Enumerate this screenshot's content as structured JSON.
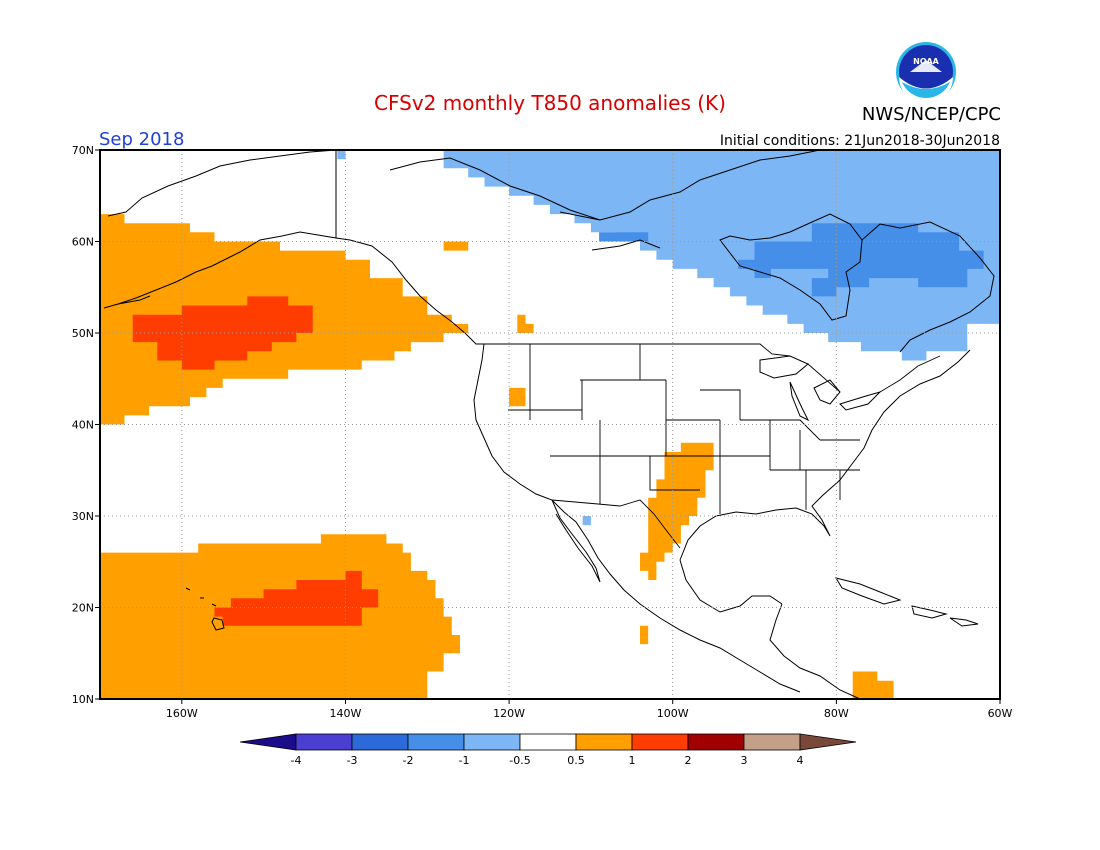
{
  "header": {
    "title": "CFSv2 monthly T850 anomalies (K)",
    "valid_month": "Sep 2018",
    "agency": "NWS/NCEP/CPC",
    "initial_conditions": "Initial conditions: 21Jun2018-30Jun2018",
    "logo_text": "NOAA"
  },
  "map": {
    "projection": "cylindrical equidistant",
    "lon_range": [
      -170,
      -60
    ],
    "lat_range": [
      10,
      70
    ],
    "grid_lines": "dotted",
    "lat_ticks": [
      "10N",
      "20N",
      "30N",
      "40N",
      "50N",
      "60N",
      "70N"
    ],
    "lon_ticks": [
      "160W",
      "140W",
      "120W",
      "100W",
      "80W",
      "60W"
    ],
    "anomaly_regions": [
      {
        "name": "north-pacific-warm",
        "category": "0.5 to 1",
        "polygon": [
          [
            -170,
            40
          ],
          [
            -167,
            40
          ],
          [
            -167,
            41
          ],
          [
            -164,
            41
          ],
          [
            -164,
            42
          ],
          [
            -159,
            42
          ],
          [
            -159,
            43
          ],
          [
            -157,
            43
          ],
          [
            -157,
            44
          ],
          [
            -155,
            44
          ],
          [
            -155,
            45
          ],
          [
            -147,
            45
          ],
          [
            -147,
            46
          ],
          [
            -138,
            46
          ],
          [
            -138,
            47
          ],
          [
            -134,
            47
          ],
          [
            -134,
            48
          ],
          [
            -132,
            48
          ],
          [
            -132,
            49
          ],
          [
            -128,
            49
          ],
          [
            -128,
            50
          ],
          [
            -125,
            50
          ],
          [
            -125,
            51
          ],
          [
            -127,
            51
          ],
          [
            -127,
            52
          ],
          [
            -130,
            52
          ],
          [
            -130,
            54
          ],
          [
            -133,
            54
          ],
          [
            -133,
            56
          ],
          [
            -137,
            56
          ],
          [
            -137,
            58
          ],
          [
            -140,
            58
          ],
          [
            -140,
            59
          ],
          [
            -148,
            59
          ],
          [
            -148,
            60
          ],
          [
            -156,
            60
          ],
          [
            -156,
            61
          ],
          [
            -159,
            61
          ],
          [
            -159,
            62
          ],
          [
            -167,
            62
          ],
          [
            -167,
            63
          ],
          [
            -170,
            63
          ]
        ]
      },
      {
        "name": "north-pacific-strong",
        "category": "1 to 2",
        "polygon": [
          [
            -166,
            52
          ],
          [
            -166,
            49
          ],
          [
            -163,
            49
          ],
          [
            -163,
            47
          ],
          [
            -160,
            47
          ],
          [
            -160,
            46
          ],
          [
            -156,
            46
          ],
          [
            -156,
            47
          ],
          [
            -152,
            47
          ],
          [
            -152,
            48
          ],
          [
            -149,
            48
          ],
          [
            -149,
            49
          ],
          [
            -146,
            49
          ],
          [
            -146,
            50
          ],
          [
            -144,
            50
          ],
          [
            -144,
            51
          ],
          [
            -144,
            53
          ],
          [
            -147,
            53
          ],
          [
            -147,
            54
          ],
          [
            -152,
            54
          ],
          [
            -152,
            53
          ],
          [
            -160,
            53
          ],
          [
            -160,
            52
          ]
        ]
      },
      {
        "name": "subtropical-pacific-warm",
        "category": "0.5 to 1",
        "polygon": [
          [
            -170,
            10
          ],
          [
            -130,
            10
          ],
          [
            -130,
            13
          ],
          [
            -128,
            13
          ],
          [
            -128,
            15
          ],
          [
            -126,
            15
          ],
          [
            -126,
            17
          ],
          [
            -127,
            17
          ],
          [
            -127,
            19
          ],
          [
            -128,
            19
          ],
          [
            -128,
            21
          ],
          [
            -129,
            21
          ],
          [
            -129,
            23
          ],
          [
            -130,
            23
          ],
          [
            -130,
            24
          ],
          [
            -132,
            24
          ],
          [
            -132,
            26
          ],
          [
            -133,
            26
          ],
          [
            -133,
            27
          ],
          [
            -135,
            27
          ],
          [
            -135,
            28
          ],
          [
            -143,
            28
          ],
          [
            -143,
            27
          ],
          [
            -158,
            27
          ],
          [
            -158,
            26
          ],
          [
            -170,
            26
          ]
        ]
      },
      {
        "name": "subtropical-pacific-strong",
        "category": "1 to 2",
        "polygon": [
          [
            -155,
            18
          ],
          [
            -138,
            18
          ],
          [
            -138,
            20
          ],
          [
            -136,
            20
          ],
          [
            -136,
            22
          ],
          [
            -138,
            22
          ],
          [
            -138,
            24
          ],
          [
            -140,
            24
          ],
          [
            -140,
            23
          ],
          [
            -146,
            23
          ],
          [
            -146,
            22
          ],
          [
            -150,
            22
          ],
          [
            -150,
            21
          ],
          [
            -154,
            21
          ],
          [
            -154,
            20
          ],
          [
            -156,
            20
          ],
          [
            -156,
            19
          ],
          [
            -155,
            19
          ]
        ]
      },
      {
        "name": "southern-plains-warm",
        "category": "0.5 to 1",
        "polygon": [
          [
            -104,
            16
          ],
          [
            -104,
            18
          ],
          [
            -103,
            18
          ],
          [
            -103,
            24
          ],
          [
            -104,
            24
          ],
          [
            -104,
            26
          ],
          [
            -103,
            26
          ],
          [
            -103,
            32
          ],
          [
            -102,
            32
          ],
          [
            -102,
            34
          ],
          [
            -101,
            34
          ],
          [
            -101,
            37
          ],
          [
            -99,
            37
          ],
          [
            -99,
            38
          ],
          [
            -95,
            38
          ],
          [
            -95,
            35
          ],
          [
            -96,
            35
          ],
          [
            -96,
            32
          ],
          [
            -97,
            32
          ],
          [
            -97,
            30
          ],
          [
            -98,
            30
          ],
          [
            -98,
            29
          ],
          [
            -99,
            29
          ],
          [
            -99,
            27
          ],
          [
            -100,
            27
          ],
          [
            -100,
            26
          ],
          [
            -101,
            26
          ],
          [
            -101,
            25
          ],
          [
            -102,
            25
          ],
          [
            -102,
            23
          ],
          [
            -103,
            23
          ],
          [
            -103,
            16
          ]
        ]
      },
      {
        "name": "gulf-of-alaska-spot",
        "category": "0.5 to 1",
        "polygon": [
          [
            -128,
            59
          ],
          [
            -125,
            59
          ],
          [
            -125,
            60
          ],
          [
            -128,
            60
          ]
        ]
      },
      {
        "name": "bc-spot",
        "category": "0.5 to 1",
        "polygon": [
          [
            -119,
            50
          ],
          [
            -117,
            50
          ],
          [
            -117,
            51
          ],
          [
            -118,
            51
          ],
          [
            -118,
            52
          ],
          [
            -119,
            52
          ]
        ]
      },
      {
        "name": "idaho-spot",
        "category": "0.5 to 1",
        "polygon": [
          [
            -120,
            42
          ],
          [
            -118,
            42
          ],
          [
            -118,
            44
          ],
          [
            -120,
            44
          ]
        ]
      },
      {
        "name": "caribbean-spot",
        "category": "0.5 to 1",
        "polygon": [
          [
            -78,
            10
          ],
          [
            -73,
            10
          ],
          [
            -73,
            12
          ],
          [
            -75,
            12
          ],
          [
            -75,
            13
          ],
          [
            -78,
            13
          ]
        ]
      },
      {
        "name": "canada-cool",
        "category": "-1 to -0.5",
        "polygon": [
          [
            -128,
            70
          ],
          [
            -60,
            70
          ],
          [
            -60,
            51
          ],
          [
            -64,
            51
          ],
          [
            -64,
            48
          ],
          [
            -69,
            48
          ],
          [
            -69,
            47
          ],
          [
            -72,
            47
          ],
          [
            -72,
            48
          ],
          [
            -77,
            48
          ],
          [
            -77,
            49
          ],
          [
            -81,
            49
          ],
          [
            -81,
            50
          ],
          [
            -84,
            50
          ],
          [
            -84,
            51
          ],
          [
            -86,
            51
          ],
          [
            -86,
            52
          ],
          [
            -89,
            52
          ],
          [
            -89,
            53
          ],
          [
            -91,
            53
          ],
          [
            -91,
            54
          ],
          [
            -93,
            54
          ],
          [
            -93,
            55
          ],
          [
            -95,
            55
          ],
          [
            -95,
            56
          ],
          [
            -97,
            56
          ],
          [
            -97,
            57
          ],
          [
            -100,
            57
          ],
          [
            -100,
            58
          ],
          [
            -102,
            58
          ],
          [
            -102,
            59
          ],
          [
            -104,
            59
          ],
          [
            -104,
            60
          ],
          [
            -107,
            60
          ],
          [
            -107,
            61
          ],
          [
            -110,
            61
          ],
          [
            -110,
            62
          ],
          [
            -112,
            62
          ],
          [
            -112,
            63
          ],
          [
            -115,
            63
          ],
          [
            -115,
            64
          ],
          [
            -117,
            64
          ],
          [
            -117,
            65
          ],
          [
            -120,
            65
          ],
          [
            -120,
            66
          ],
          [
            -123,
            66
          ],
          [
            -123,
            67
          ],
          [
            -125,
            67
          ],
          [
            -125,
            68
          ],
          [
            -128,
            68
          ]
        ]
      },
      {
        "name": "hudson-bay-cool",
        "category": "-2 to -1",
        "polygon": [
          [
            -83,
            54
          ],
          [
            -83,
            56
          ],
          [
            -81,
            56
          ],
          [
            -81,
            57
          ],
          [
            -88,
            57
          ],
          [
            -88,
            56
          ],
          [
            -90,
            56
          ],
          [
            -90,
            57
          ],
          [
            -92,
            57
          ],
          [
            -92,
            58
          ],
          [
            -90,
            58
          ],
          [
            -90,
            60
          ],
          [
            -83,
            60
          ],
          [
            -83,
            62
          ],
          [
            -70,
            62
          ],
          [
            -70,
            61
          ],
          [
            -65,
            61
          ],
          [
            -65,
            59
          ],
          [
            -62,
            59
          ],
          [
            -62,
            57
          ],
          [
            -64,
            57
          ],
          [
            -64,
            55
          ],
          [
            -70,
            55
          ],
          [
            -70,
            56
          ],
          [
            -76,
            56
          ],
          [
            -76,
            55
          ],
          [
            -80,
            55
          ],
          [
            -80,
            54
          ]
        ]
      },
      {
        "name": "yukon-cool-spot",
        "category": "-2 to -1",
        "polygon": [
          [
            -109,
            60
          ],
          [
            -103,
            60
          ],
          [
            -103,
            61
          ],
          [
            -109,
            61
          ]
        ]
      },
      {
        "name": "mexico-cool-spot",
        "category": "-1 to -0.5",
        "polygon": [
          [
            -111,
            29
          ],
          [
            -110,
            29
          ],
          [
            -110,
            30
          ],
          [
            -111,
            30
          ]
        ]
      },
      {
        "name": "arctic-cool-spot",
        "category": "-1 to -0.5",
        "polygon": [
          [
            -141,
            69
          ],
          [
            -140,
            69
          ],
          [
            -140,
            70
          ],
          [
            -141,
            70
          ]
        ]
      }
    ]
  },
  "colorbar": {
    "labels": [
      "-4",
      "-3",
      "-2",
      "-1",
      "-0.5",
      "0.5",
      "1",
      "2",
      "3",
      "4"
    ],
    "colors": [
      "#1c0c8a",
      "#4b3fd1",
      "#2b6ad8",
      "#468fe8",
      "#7db6f4",
      "#ffffff",
      "#ffa000",
      "#ff3d00",
      "#a00000",
      "#c4a088",
      "#7a4838"
    ],
    "category_colors": {
      "-1 to -0.5": "#7db6f4",
      "-2 to -1": "#468fe8",
      "0.5 to 1": "#ffa000",
      "1 to 2": "#ff3d00"
    }
  },
  "colors": {
    "title": "#d80000",
    "month_label": "#1f3fd8",
    "text": "#000000"
  }
}
